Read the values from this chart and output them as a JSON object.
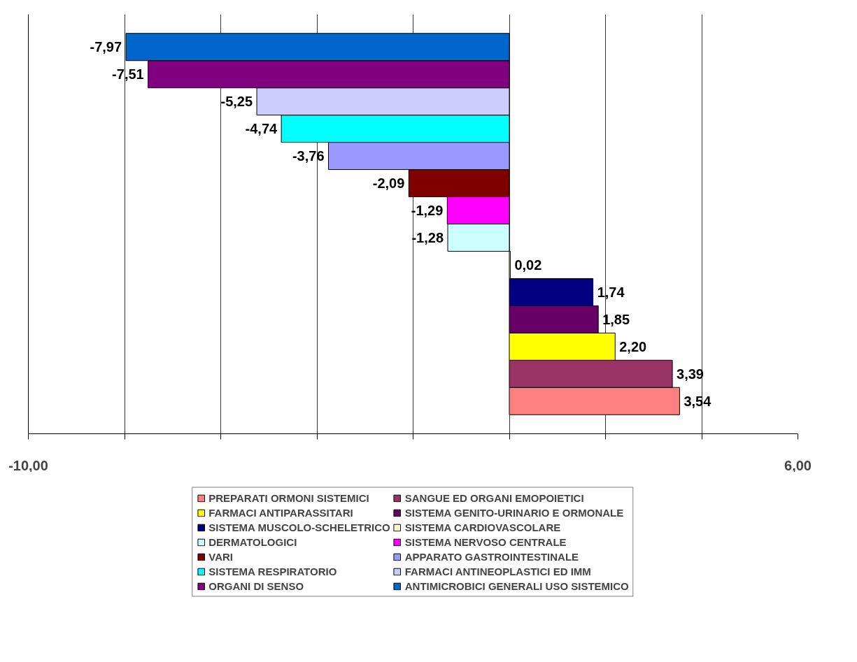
{
  "chart_data": {
    "type": "bar",
    "orientation": "horizontal",
    "categories": [
      null
    ],
    "series": [
      {
        "name": "PREPARATI ORMONI SISTEMICI",
        "color": "#ff8080",
        "values": [
          3.54
        ],
        "value_labels": [
          "3,54"
        ]
      },
      {
        "name": "SANGUE ED ORGANI EMOPOIETICI",
        "color": "#993366",
        "values": [
          3.39
        ],
        "value_labels": [
          "3,39"
        ]
      },
      {
        "name": "FARMACI ANTIPARASSITARI",
        "color": "#ffff00",
        "values": [
          2.2
        ],
        "value_labels": [
          "2,20"
        ]
      },
      {
        "name": "SISTEMA GENITO-URINARIO E ORMONALE",
        "color": "#660066",
        "values": [
          1.85
        ],
        "value_labels": [
          "1,85"
        ]
      },
      {
        "name": "SISTEMA MUSCOLO-SCHELETRICO",
        "color": "#000080",
        "values": [
          1.74
        ],
        "value_labels": [
          "1,74"
        ]
      },
      {
        "name": "SISTEMA CARDIOVASCOLARE",
        "color": "#ffffcc",
        "values": [
          0.02
        ],
        "value_labels": [
          "0,02"
        ]
      },
      {
        "name": "DERMATOLOGICI",
        "color": "#ccffff",
        "values": [
          -1.28
        ],
        "value_labels": [
          "-1,28"
        ]
      },
      {
        "name": "SISTEMA NERVOSO CENTRALE",
        "color": "#ff00ff",
        "values": [
          -1.29
        ],
        "value_labels": [
          "-1,29"
        ]
      },
      {
        "name": "VARI",
        "color": "#800000",
        "values": [
          -2.09
        ],
        "value_labels": [
          "-2,09"
        ]
      },
      {
        "name": "APPARATO GASTROINTESTINALE",
        "color": "#9999ff",
        "values": [
          -3.76
        ],
        "value_labels": [
          "-3,76"
        ]
      },
      {
        "name": "SISTEMA RESPIRATORIO",
        "color": "#00ffff",
        "values": [
          -4.74
        ],
        "value_labels": [
          "-4,74"
        ]
      },
      {
        "name": "FARMACI ANTINEOPLASTICI ED IMM",
        "color": "#ccccff",
        "values": [
          -5.25
        ],
        "value_labels": [
          "-5,25"
        ]
      },
      {
        "name": "ORGANI DI SENSO",
        "color": "#800080",
        "values": [
          -7.51
        ],
        "value_labels": [
          "-7,51"
        ]
      },
      {
        "name": "ANTIMICROBICI GENERALI USO SISTEMICO",
        "color": "#0066cc",
        "values": [
          -7.97
        ],
        "value_labels": [
          "-7,97"
        ]
      }
    ],
    "xlim": [
      -10,
      6
    ],
    "xticks": [
      {
        "value": -10,
        "label": "-10,00"
      },
      {
        "value": -8,
        "label": null
      },
      {
        "value": -6,
        "label": null
      },
      {
        "value": -4,
        "label": null
      },
      {
        "value": -2,
        "label": null
      },
      {
        "value": 0,
        "label": null
      },
      {
        "value": 2,
        "label": null
      },
      {
        "value": 4,
        "label": null
      },
      {
        "value": 6,
        "label": "6,00"
      }
    ],
    "grid": "x",
    "legend": "bottom",
    "tick_labels": "x"
  }
}
